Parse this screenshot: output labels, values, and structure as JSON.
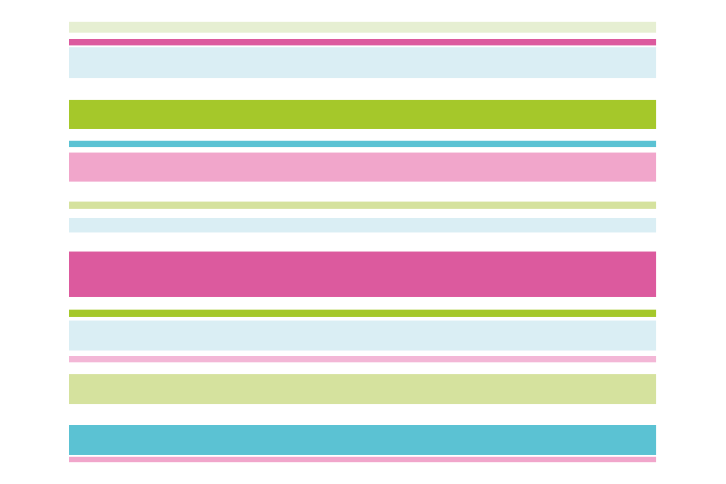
{
  "pattern": {
    "stripes": [
      {
        "color": "#e6efd2"
      },
      {
        "color": "#dc5a9e"
      },
      {
        "color": "#daeef4"
      },
      {
        "color": "#a5c82a"
      },
      {
        "color": "#5bc2d3"
      },
      {
        "color": "#f1a6cb"
      },
      {
        "color": "#d5e29e"
      },
      {
        "color": "#daeef4"
      },
      {
        "color": "#dc5a9e"
      },
      {
        "color": "#a5c82a"
      },
      {
        "color": "#daeef4"
      },
      {
        "color": "#f3b7d6"
      },
      {
        "color": "#d5e29e"
      },
      {
        "color": "#5bc2d3"
      },
      {
        "color": "#f1a6cb"
      }
    ]
  }
}
